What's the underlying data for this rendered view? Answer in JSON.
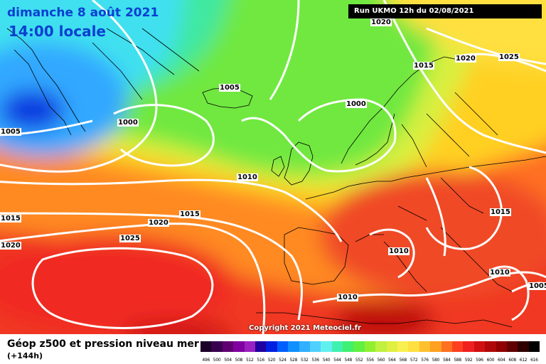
{
  "header": {
    "date": "dimanche 8 août 2021",
    "time": "14:00 locale",
    "run": "Run UKMO 12h du 02/08/2021"
  },
  "copyright": "Copyright 2021 Meteociel.fr",
  "footer": {
    "title": "Géop z500 et pression niveau mer",
    "subtitle": "(+144h)"
  },
  "isobar_labels": [
    "1020",
    "1020",
    "1025",
    "1015",
    "1005",
    "1000",
    "1000",
    "1005",
    "1010",
    "1015",
    "1020",
    "1015",
    "1025",
    "1020",
    "1010",
    "1015",
    "1010",
    "1010",
    "1005"
  ],
  "scale": {
    "ticks": [
      "496",
      "500",
      "504",
      "508",
      "512",
      "516",
      "520",
      "524",
      "528",
      "532",
      "536",
      "540",
      "544",
      "548",
      "552",
      "556",
      "560",
      "564",
      "568",
      "572",
      "576",
      "580",
      "584",
      "588",
      "592",
      "596",
      "600",
      "604",
      "608",
      "612",
      "616"
    ],
    "colors": [
      "#1a0028",
      "#3a0050",
      "#600070",
      "#8000a0",
      "#9a20c0",
      "#2000a0",
      "#0020e0",
      "#0060ff",
      "#1090ff",
      "#30b0ff",
      "#50d0ff",
      "#60f0f0",
      "#40f0b0",
      "#40f070",
      "#60f040",
      "#90f030",
      "#c0f040",
      "#e0f040",
      "#f8f050",
      "#ffe040",
      "#ffc030",
      "#ffa020",
      "#ff7020",
      "#ff4020",
      "#f02020",
      "#d01010",
      "#b00808",
      "#900000",
      "#600000",
      "#300000",
      "#000000"
    ]
  },
  "colors": {
    "title_text": "#0a3fd0",
    "isobar": "#ffffff",
    "coastline": "#000000"
  }
}
